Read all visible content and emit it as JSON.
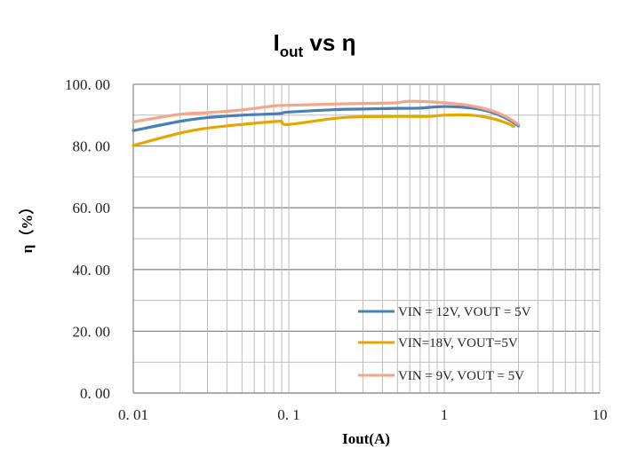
{
  "chart_data": {
    "type": "line",
    "title": {
      "main": "I",
      "sub": "out",
      "rest": " vs η"
    },
    "xlabel": "Iout(A)",
    "ylabel": "η（%）",
    "xscale": "log",
    "xlim": [
      0.01,
      10
    ],
    "ylim": [
      0,
      100
    ],
    "xticks": [
      0.01,
      0.1,
      1,
      10
    ],
    "xtick_labels": [
      "0. 01",
      "0. 1",
      "1",
      "10"
    ],
    "yticks": [
      0,
      20,
      40,
      60,
      80,
      100
    ],
    "ytick_labels": [
      "0. 00",
      "20. 00",
      "40. 00",
      "60. 00",
      "80. 00",
      "100. 00"
    ],
    "grid": true,
    "legend_position": "bottom-right",
    "series": [
      {
        "name": "VIN = 12V, VOUT = 5V",
        "color": "#4a7fb5",
        "x": [
          0.01,
          0.02,
          0.03,
          0.05,
          0.08,
          0.09,
          0.1,
          0.2,
          0.3,
          0.5,
          0.7,
          1,
          1.5,
          2,
          2.5,
          3
        ],
        "y": [
          85,
          88,
          89.2,
          90,
          90.4,
          90.6,
          91,
          91.8,
          92,
          92.2,
          92.3,
          92.8,
          92.3,
          91,
          89,
          86.5
        ]
      },
      {
        "name": "VIN=18V, VOUT=5V",
        "color": "#e3a700",
        "x": [
          0.01,
          0.02,
          0.03,
          0.05,
          0.085,
          0.09,
          0.1,
          0.2,
          0.3,
          0.5,
          0.8,
          1,
          1.5,
          2,
          2.5,
          2.8
        ],
        "y": [
          80.2,
          84.2,
          85.8,
          87,
          88,
          87.8,
          87,
          89,
          89.5,
          89.6,
          89.6,
          90,
          90,
          89,
          87.5,
          86.3
        ]
      },
      {
        "name": "VIN = 9V, VOUT = 5V",
        "color": "#f2a68a",
        "x": [
          0.01,
          0.02,
          0.03,
          0.05,
          0.08,
          0.1,
          0.2,
          0.4,
          0.5,
          0.6,
          1,
          1.5,
          2,
          2.5,
          3
        ],
        "y": [
          87.8,
          90.3,
          90.8,
          91.7,
          93,
          93.2,
          93.6,
          93.9,
          94,
          94.5,
          94,
          93,
          91.5,
          89.5,
          87
        ]
      }
    ]
  }
}
